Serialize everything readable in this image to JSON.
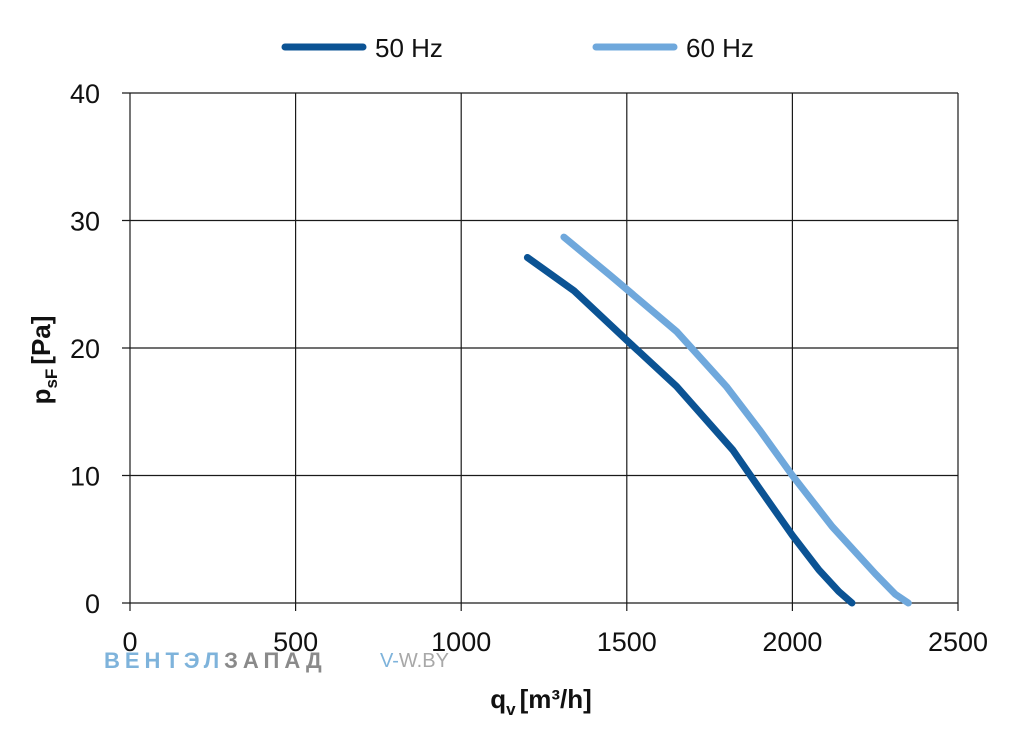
{
  "chart_data": {
    "type": "line",
    "xlabel": {
      "main": "q",
      "sub": "v",
      "unit": "[m³/h]"
    },
    "ylabel": {
      "main": "p",
      "sub": "sF",
      "unit": "[Pa]"
    },
    "xlim": [
      0,
      2500
    ],
    "ylim": [
      0,
      40
    ],
    "x_ticks": [
      "0",
      "500",
      "1000",
      "1500",
      "2000",
      "2500"
    ],
    "y_ticks": [
      "0",
      "10",
      "20",
      "30",
      "40"
    ],
    "grid": true,
    "legend_position": "top",
    "series": [
      {
        "name": "50 Hz",
        "color": "#0b5394",
        "points": [
          [
            1200,
            27.1
          ],
          [
            1340,
            24.5
          ],
          [
            1500,
            20.6
          ],
          [
            1650,
            17.0
          ],
          [
            1820,
            12.0
          ],
          [
            1900,
            9.0
          ],
          [
            2000,
            5.3
          ],
          [
            2080,
            2.6
          ],
          [
            2140,
            0.9
          ],
          [
            2180,
            0.0
          ]
        ]
      },
      {
        "name": "60 Hz",
        "color": "#6fa8dc",
        "points": [
          [
            1310,
            28.7
          ],
          [
            1450,
            25.7
          ],
          [
            1650,
            21.3
          ],
          [
            1800,
            17.0
          ],
          [
            1900,
            13.6
          ],
          [
            2000,
            10.0
          ],
          [
            2120,
            6.0
          ],
          [
            2250,
            2.3
          ],
          [
            2310,
            0.7
          ],
          [
            2350,
            0.0
          ]
        ]
      }
    ]
  },
  "watermark": {
    "part1": "ВЕНТЭЛ",
    "part2": "ЗАПАД",
    "site_prefix": "V-",
    "site_rest": "W.BY",
    "color1": "#7eb3db",
    "color2": "#8a8a8a"
  }
}
